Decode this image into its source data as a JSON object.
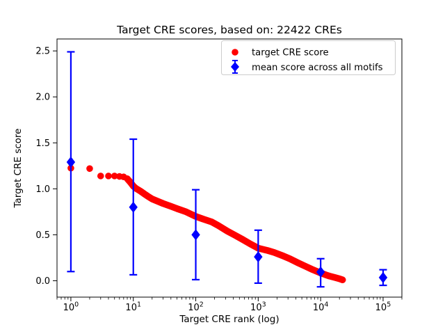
{
  "chart_data": {
    "type": "scatter",
    "title": "Target CRE scores, based on: 22422 CREs",
    "xlabel": "Target CRE rank (log)",
    "ylabel": "Target CRE score",
    "x_scale": "log",
    "grid": false,
    "legend_position": "upper right",
    "xlim": [
      0.6,
      200000
    ],
    "ylim": [
      -0.178,
      2.63
    ],
    "x_ticks": [
      {
        "value": 1,
        "base": "10",
        "exp": "0"
      },
      {
        "value": 10,
        "base": "10",
        "exp": "1"
      },
      {
        "value": 100,
        "base": "10",
        "exp": "2"
      },
      {
        "value": 1000,
        "base": "10",
        "exp": "3"
      },
      {
        "value": 10000,
        "base": "10",
        "exp": "4"
      },
      {
        "value": 100000,
        "base": "10",
        "exp": "5"
      }
    ],
    "x_minor_multiples": [
      2,
      3,
      4,
      5,
      6,
      7,
      8,
      9
    ],
    "y_ticks": [
      {
        "value": 0.0,
        "label": "0.0"
      },
      {
        "value": 0.5,
        "label": "0.5"
      },
      {
        "value": 1.0,
        "label": "1.0"
      },
      {
        "value": 1.5,
        "label": "1.5"
      },
      {
        "value": 2.0,
        "label": "2.0"
      },
      {
        "value": 2.5,
        "label": "2.5"
      }
    ],
    "colors": {
      "target": "#ff0000",
      "mean": "#0000ff",
      "spine": "#000000",
      "legend_border": "#cccccc"
    },
    "legend": [
      {
        "label": "target CRE score",
        "marker": "circle",
        "color": "#ff0000"
      },
      {
        "label": "mean score across all motifs",
        "marker": "diamond-errorbar",
        "color": "#0000ff"
      }
    ],
    "series": [
      {
        "name": "target CRE score",
        "marker": "circle",
        "color": "#ff0000",
        "note": "points are [rank, score]; ranks <= 7 rendered as discrete dots, ranks >= 8 merge into a dense band of 22422 points",
        "points": [
          [
            1,
            1.225
          ],
          [
            2,
            1.22
          ],
          [
            3,
            1.14
          ],
          [
            4,
            1.14
          ],
          [
            5,
            1.14
          ],
          [
            6,
            1.135
          ],
          [
            7,
            1.13
          ],
          [
            8,
            1.11
          ],
          [
            9,
            1.07
          ],
          [
            10,
            1.03
          ],
          [
            11,
            1.005
          ],
          [
            13,
            0.975
          ],
          [
            15,
            0.945
          ],
          [
            17,
            0.92
          ],
          [
            20,
            0.89
          ],
          [
            25,
            0.862
          ],
          [
            30,
            0.84
          ],
          [
            40,
            0.81
          ],
          [
            50,
            0.785
          ],
          [
            70,
            0.75
          ],
          [
            100,
            0.7
          ],
          [
            130,
            0.672
          ],
          [
            180,
            0.64
          ],
          [
            230,
            0.6
          ],
          [
            320,
            0.54
          ],
          [
            420,
            0.497
          ],
          [
            560,
            0.45
          ],
          [
            750,
            0.4
          ],
          [
            1000,
            0.355
          ],
          [
            1400,
            0.33
          ],
          [
            1800,
            0.308
          ],
          [
            2400,
            0.275
          ],
          [
            3200,
            0.24
          ],
          [
            4200,
            0.2
          ],
          [
            5600,
            0.16
          ],
          [
            7500,
            0.12
          ],
          [
            10000,
            0.085
          ],
          [
            12000,
            0.065
          ],
          [
            14000,
            0.05
          ],
          [
            17000,
            0.035
          ],
          [
            20000,
            0.022
          ],
          [
            22422,
            0.01
          ]
        ]
      },
      {
        "name": "mean score across all motifs",
        "marker": "diamond",
        "color": "#0000ff",
        "note": "points are [rank, mean, errorbar_low, errorbar_high]",
        "points": [
          [
            1,
            1.29,
            0.1,
            2.49
          ],
          [
            10,
            0.8,
            0.065,
            1.54
          ],
          [
            100,
            0.5,
            0.012,
            0.99
          ],
          [
            1000,
            0.26,
            -0.026,
            0.55
          ],
          [
            10000,
            0.095,
            -0.066,
            0.24
          ],
          [
            100000,
            0.035,
            -0.05,
            0.12
          ]
        ]
      }
    ]
  }
}
